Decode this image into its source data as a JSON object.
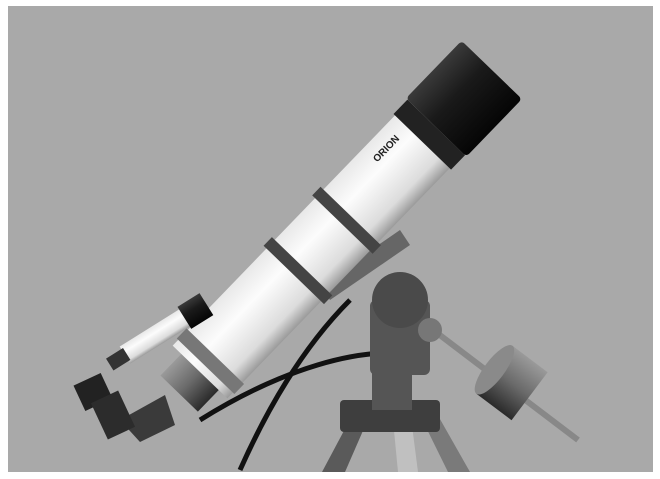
{
  "image": {
    "logo_text": "ORION"
  }
}
